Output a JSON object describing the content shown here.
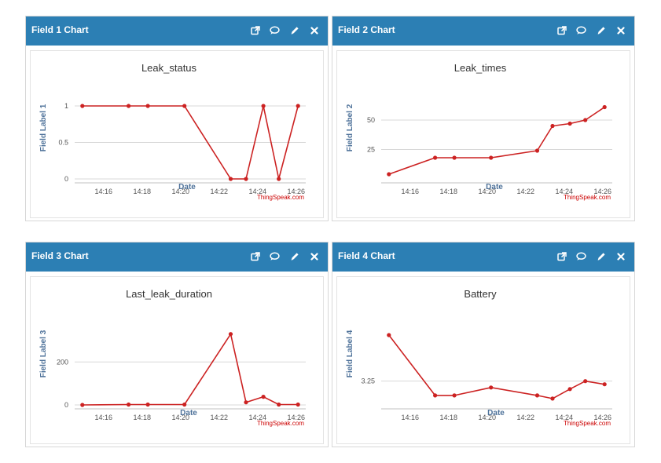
{
  "colors": {
    "header_bg": "#2c7fb4",
    "series_line": "#cc2222",
    "axis_title": "#4d7199",
    "credit": "#cc0000"
  },
  "icons": [
    "external-link-icon",
    "comment-icon",
    "pencil-icon",
    "close-icon"
  ],
  "panels": [
    {
      "title": "Field 1 Chart",
      "chart_title": "Leak_status",
      "ylabel": "Field Label 1",
      "xlabel": "Date",
      "credit": "ThingSpeak.com"
    },
    {
      "title": "Field 2 Chart",
      "chart_title": "Leak_times",
      "ylabel": "Field Label 2",
      "xlabel": "Date",
      "credit": "ThingSpeak.com"
    },
    {
      "title": "Field 3 Chart",
      "chart_title": "Last_leak_duration",
      "ylabel": "Field Label 3",
      "xlabel": "Date",
      "credit": "ThingSpeak.com"
    },
    {
      "title": "Field 4 Chart",
      "chart_title": "Battery",
      "ylabel": "Field Label 4",
      "xlabel": "Date",
      "credit": "ThingSpeak.com"
    }
  ],
  "chart_data": [
    {
      "type": "line",
      "title": "Leak_status",
      "xlabel": "Date",
      "ylabel": "Field Label 1",
      "x_ticks": [
        "14:16",
        "14:18",
        "14:20",
        "14:22",
        "14:24",
        "14:26"
      ],
      "y_ticks": [
        "0",
        "0.5",
        "1"
      ],
      "x": [
        "14:14.9",
        "14:17.3",
        "14:18.3",
        "14:20.2",
        "14:22.6",
        "14:23.4",
        "14:24.3",
        "14:25.1",
        "14:26.1"
      ],
      "y": [
        1,
        1,
        1,
        1,
        0,
        0,
        1,
        0,
        1
      ],
      "xlim": [
        "14:14.5",
        "14:26.5"
      ],
      "ylim": [
        0,
        1
      ],
      "grid": true
    },
    {
      "type": "line",
      "title": "Leak_times",
      "xlabel": "Date",
      "ylabel": "Field Label 2",
      "x_ticks": [
        "14:16",
        "14:18",
        "14:20",
        "14:22",
        "14:24",
        "14:26"
      ],
      "y_ticks": [
        "25",
        "50"
      ],
      "x": [
        "14:14.9",
        "14:17.3",
        "14:18.3",
        "14:20.2",
        "14:22.6",
        "14:23.4",
        "14:24.3",
        "14:25.1",
        "14:26.1"
      ],
      "y": [
        4,
        18,
        18,
        18,
        24,
        45,
        47,
        50,
        61
      ],
      "xlim": [
        "14:14.5",
        "14:26.5"
      ],
      "ylim": [
        0,
        62
      ],
      "grid": true
    },
    {
      "type": "line",
      "title": "Last_leak_duration",
      "xlabel": "Date",
      "ylabel": "Field Label 3",
      "x_ticks": [
        "14:16",
        "14:18",
        "14:20",
        "14:22",
        "14:24",
        "14:26"
      ],
      "y_ticks": [
        "0",
        "200"
      ],
      "x": [
        "14:14.9",
        "14:17.3",
        "14:18.3",
        "14:20.2",
        "14:22.6",
        "14:23.4",
        "14:24.3",
        "14:25.1",
        "14:26.1"
      ],
      "y": [
        0,
        2,
        2,
        2,
        330,
        12,
        38,
        2,
        2
      ],
      "xlim": [
        "14:14.5",
        "14:26.5"
      ],
      "ylim": [
        0,
        340
      ],
      "grid": true
    },
    {
      "type": "line",
      "title": "Battery",
      "xlabel": "Date",
      "ylabel": "Field Label 4",
      "x_ticks": [
        "14:16",
        "14:18",
        "14:20",
        "14:22",
        "14:24",
        "14:26"
      ],
      "y_ticks": [
        "3.25"
      ],
      "x": [
        "14:14.9",
        "14:17.3",
        "14:18.3",
        "14:20.2",
        "14:22.6",
        "14:23.4",
        "14:24.3",
        "14:25.1",
        "14:26.1"
      ],
      "y": [
        3.54,
        3.16,
        3.16,
        3.21,
        3.16,
        3.14,
        3.2,
        3.25,
        3.23
      ],
      "xlim": [
        "14:14.5",
        "14:26.5"
      ],
      "ylim": [
        3.1,
        3.56
      ],
      "grid": true
    }
  ]
}
